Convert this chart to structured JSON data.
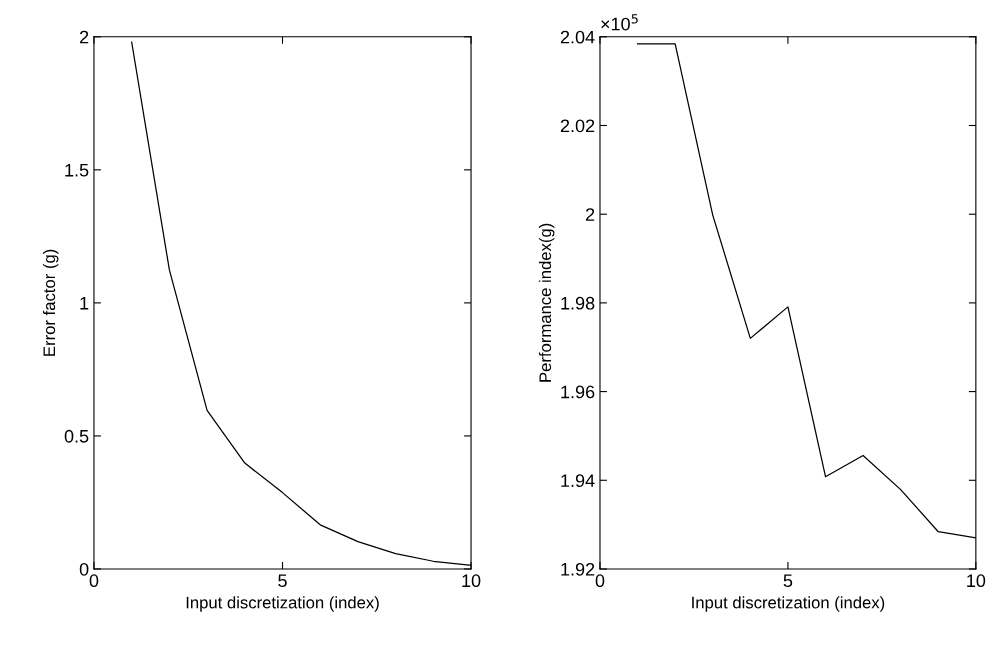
{
  "chart_data": [
    {
      "type": "line",
      "xlabel": "Input discretization (index)",
      "ylabel": "Error factor (g)",
      "x": [
        1,
        2,
        3,
        4,
        5,
        6,
        7,
        8,
        9,
        10
      ],
      "series": [
        {
          "color": "#000000",
          "values": [
            1.98,
            1.124,
            0.596,
            0.398,
            0.287,
            0.166,
            0.103,
            0.058,
            0.029,
            0.014
          ]
        }
      ],
      "xlim": [
        0,
        10
      ],
      "xticks": [
        0,
        5,
        10
      ],
      "ylim": [
        0,
        2
      ],
      "yticks": [
        0,
        0.5,
        1,
        1.5,
        2
      ],
      "grid": false,
      "legend": false
    },
    {
      "type": "line",
      "xlabel": "Input discretization (index)",
      "ylabel": "Performance index(g)",
      "x": [
        1,
        2,
        3,
        4,
        5,
        6,
        7,
        8,
        9,
        10
      ],
      "series": [
        {
          "color": "#000000",
          "values": [
            2.0384,
            2.0384,
            1.9998,
            1.972,
            1.9791,
            1.9408,
            1.9456,
            1.9379,
            1.9284,
            1.927
          ]
        }
      ],
      "xlim": [
        0,
        10
      ],
      "xticks": [
        0,
        5,
        10
      ],
      "ylim": [
        1.92,
        2.04
      ],
      "yticks": [
        1.92,
        1.94,
        1.96,
        1.98,
        2,
        2.02,
        2.04
      ],
      "grid": false,
      "legend": false,
      "annotations": [
        "×10$^{5}$"
      ]
    }
  ]
}
